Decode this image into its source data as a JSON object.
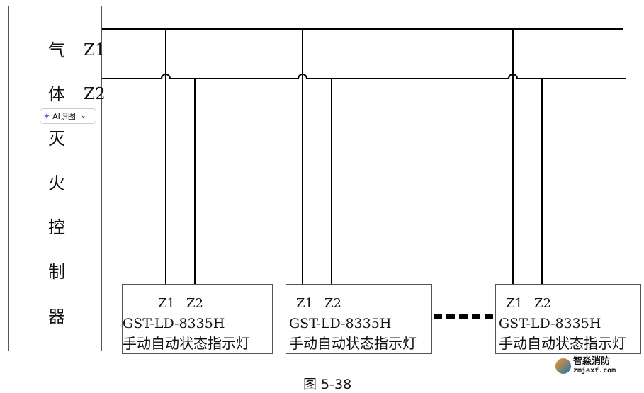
{
  "controller": {
    "chars": [
      "气",
      "体",
      "灭",
      "火",
      "控",
      "制",
      "器"
    ],
    "z1_label": "Z1",
    "z2_label": "Z2"
  },
  "ai_button": {
    "label": "AI识图",
    "icon": "ai-sparkle-icon"
  },
  "devices": [
    {
      "z1": "Z1",
      "z2": "Z2",
      "model": "GST-LD-8335H",
      "desc": "手动自动状态指示灯"
    },
    {
      "z1": "Z1",
      "z2": "Z2",
      "model": "GST-LD-8335H",
      "desc": "手动自动状态指示灯"
    },
    {
      "z1": "Z1",
      "z2": "Z2",
      "model": "GST-LD-8335H",
      "desc": "手动自动状态指示灯"
    }
  ],
  "caption": "图 5-38",
  "watermark": {
    "name": "智淼消防",
    "url": "zmjaxf.com"
  }
}
